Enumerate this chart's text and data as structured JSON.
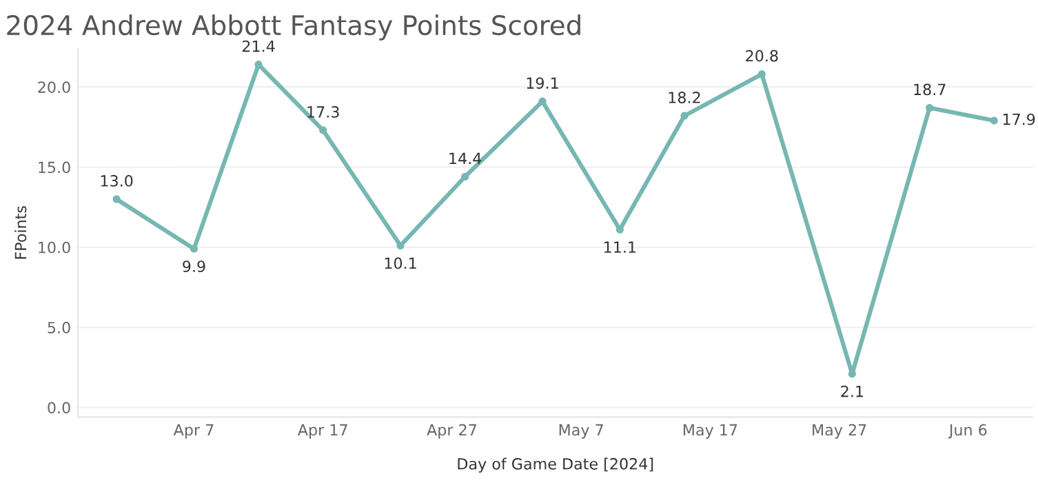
{
  "chart_data": {
    "type": "line",
    "title": "2024 Andrew Abbott Fantasy Points Scored",
    "xlabel": "Day of Game Date [2024]",
    "ylabel": "FPoints",
    "x": [
      "2024-04-01",
      "2024-04-07",
      "2024-04-12",
      "2024-04-17",
      "2024-04-23",
      "2024-04-28",
      "2024-05-04",
      "2024-05-10",
      "2024-05-15",
      "2024-05-21",
      "2024-05-28",
      "2024-06-03",
      "2024-06-08"
    ],
    "series": [
      {
        "color": "#76b7b2",
        "values": [
          13.0,
          9.9,
          21.4,
          17.3,
          10.1,
          14.4,
          19.1,
          11.1,
          18.2,
          20.8,
          2.1,
          18.7,
          17.9
        ],
        "value_labels": [
          "13.0",
          "9.9",
          "21.4",
          "17.3",
          "10.1",
          "14.4",
          "19.1",
          "11.1",
          "18.2",
          "20.8",
          "2.1",
          "18.7",
          "17.9"
        ]
      }
    ],
    "xlim": [
      "2024-03-29",
      "2024-06-11"
    ],
    "xticks": [
      {
        "value": "2024-04-07",
        "label": "Apr 7"
      },
      {
        "value": "2024-04-17",
        "label": "Apr 17"
      },
      {
        "value": "2024-04-27",
        "label": "Apr 27"
      },
      {
        "value": "2024-05-07",
        "label": "May 7"
      },
      {
        "value": "2024-05-17",
        "label": "May 17"
      },
      {
        "value": "2024-05-27",
        "label": "May 27"
      },
      {
        "value": "2024-06-06",
        "label": "Jun 6"
      }
    ],
    "ylim": [
      -0.6,
      22.4
    ],
    "yticks": [
      {
        "value": 0,
        "label": "0.0"
      },
      {
        "value": 5,
        "label": "5.0"
      },
      {
        "value": 10,
        "label": "10.0"
      },
      {
        "value": 15,
        "label": "15.0"
      },
      {
        "value": 20,
        "label": "20.0"
      }
    ],
    "grid": "y",
    "marker": "circle",
    "line_style": "solid"
  }
}
